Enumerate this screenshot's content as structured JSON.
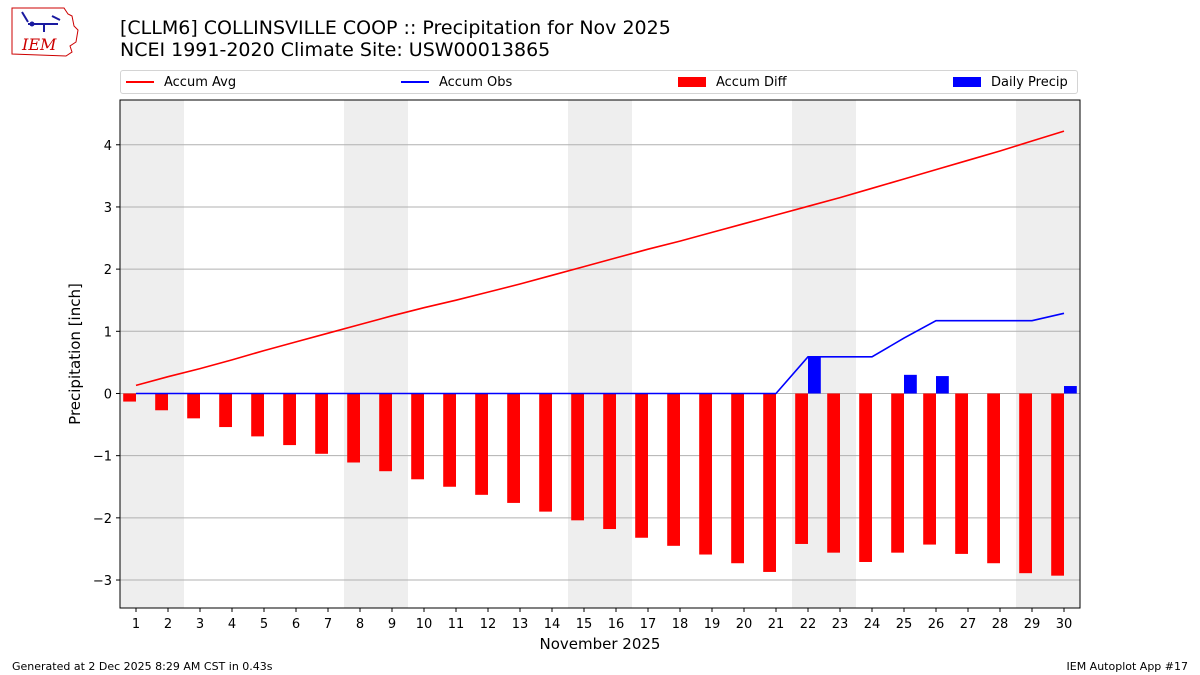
{
  "header": {
    "logo_text": "IEM",
    "title_line1": "[CLLM6] COLLINSVILLE COOP :: Precipitation for Nov 2025",
    "title_line2": "NCEI 1991-2020 Climate Site: USW00013865"
  },
  "footer": {
    "generated": "Generated at 2 Dec 2025 8:29 AM CST in 0.43s",
    "app": "IEM Autoplot App #17"
  },
  "chart_data": {
    "type": "bar",
    "xlabel": "November 2025",
    "ylabel": "Precipitation [inch]",
    "ylim": [
      -3.45,
      4.72
    ],
    "yticks": [
      -3,
      -2,
      -1,
      0,
      1,
      2,
      3,
      4
    ],
    "grid": true,
    "legend_position": "top",
    "x": [
      1,
      2,
      3,
      4,
      5,
      6,
      7,
      8,
      9,
      10,
      11,
      12,
      13,
      14,
      15,
      16,
      17,
      18,
      19,
      20,
      21,
      22,
      23,
      24,
      25,
      26,
      27,
      28,
      29,
      30
    ],
    "weekend_shading_days": [
      1,
      2,
      8,
      9,
      15,
      16,
      22,
      23,
      29,
      30
    ],
    "series": [
      {
        "name": "Accum Avg",
        "kind": "line",
        "color": "#ff0000",
        "values": [
          0.13,
          0.27,
          0.4,
          0.54,
          0.69,
          0.83,
          0.97,
          1.11,
          1.25,
          1.38,
          1.5,
          1.63,
          1.76,
          1.9,
          2.04,
          2.18,
          2.32,
          2.45,
          2.59,
          2.73,
          2.87,
          3.01,
          3.15,
          3.3,
          3.45,
          3.6,
          3.75,
          3.9,
          4.06,
          4.22
        ]
      },
      {
        "name": "Accum Obs",
        "kind": "line",
        "color": "#0000ff",
        "values": [
          0,
          0,
          0,
          0,
          0,
          0,
          0,
          0,
          0,
          0,
          0,
          0,
          0,
          0,
          0,
          0,
          0,
          0,
          0,
          0,
          0,
          0.59,
          0.59,
          0.59,
          0.89,
          1.17,
          1.17,
          1.17,
          1.17,
          1.29
        ]
      },
      {
        "name": "Accum Diff",
        "kind": "bar",
        "color": "#ff0000",
        "values": [
          -0.13,
          -0.27,
          -0.4,
          -0.54,
          -0.69,
          -0.83,
          -0.97,
          -1.11,
          -1.25,
          -1.38,
          -1.5,
          -1.63,
          -1.76,
          -1.9,
          -2.04,
          -2.18,
          -2.32,
          -2.45,
          -2.59,
          -2.73,
          -2.87,
          -2.42,
          -2.56,
          -2.71,
          -2.56,
          -2.43,
          -2.58,
          -2.73,
          -2.89,
          -2.93
        ]
      },
      {
        "name": "Daily Precip",
        "kind": "bar",
        "color": "#0000ff",
        "values": [
          0,
          0,
          0,
          0,
          0,
          0,
          0,
          0,
          0,
          0,
          0,
          0,
          0,
          0,
          0,
          0,
          0,
          0,
          0,
          0,
          0,
          0.59,
          0,
          0,
          0.3,
          0.28,
          0,
          0,
          0,
          0.12
        ]
      }
    ]
  }
}
